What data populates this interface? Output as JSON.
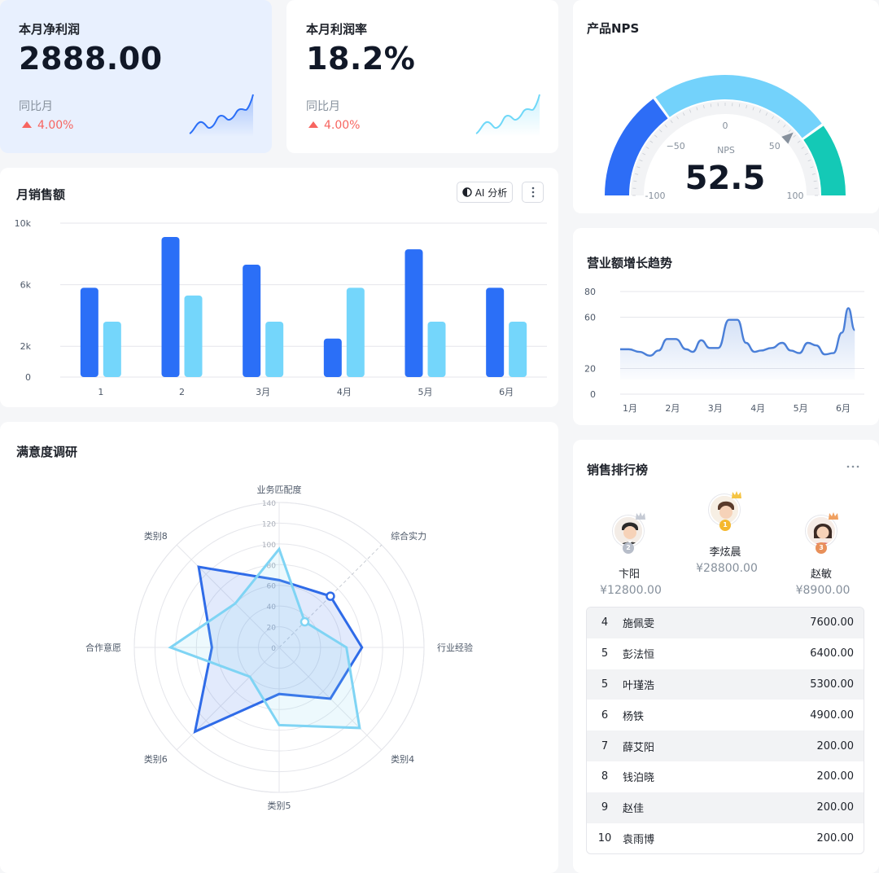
{
  "kpi_profit": {
    "title": "本月净利润",
    "value": "2888.00",
    "compare_label": "同比月",
    "change": "4.00%"
  },
  "kpi_margin": {
    "title": "本月利润率",
    "value": "18.2%",
    "compare_label": "同比月",
    "change": "4.00%"
  },
  "nps": {
    "title": "产品NPS",
    "label": "NPS",
    "value": "52.5",
    "gauge_value": 52.5,
    "range": [
      -100,
      100
    ],
    "ticks": [
      "-100",
      "−50",
      "0",
      "50",
      "100"
    ],
    "colors": [
      "#2d6df6",
      "#73d2fb",
      "#14c9b6"
    ]
  },
  "monthly_sales": {
    "title": "月销售额",
    "ai_button": "AI 分析",
    "more_icon": "more-vertical-icon",
    "chart_data": {
      "type": "bar",
      "categories": [
        "1",
        "2",
        "3月",
        "4月",
        "5月",
        "6月"
      ],
      "series": [
        {
          "values": [
            5800,
            9100,
            7300,
            2500,
            8300,
            5800
          ],
          "color": "#2b6ff7"
        },
        {
          "values": [
            3600,
            5300,
            3600,
            5800,
            3600,
            3600
          ],
          "color": "#74d6fb"
        }
      ],
      "y_ticks": [
        "0",
        "2k",
        "6k",
        "10k"
      ],
      "ylim": [
        0,
        10000
      ],
      "grid": true
    }
  },
  "revenue_trend": {
    "title": "营业额增长趋势",
    "chart_data": {
      "type": "area",
      "x_ticks": [
        "1月",
        "2月",
        "3月",
        "4月",
        "5月",
        "6月"
      ],
      "y_ticks": [
        "0",
        "20",
        "60",
        "80"
      ],
      "ylim": [
        0,
        80
      ],
      "x": [
        0.0,
        0.2,
        0.45,
        0.7,
        0.9,
        1.1,
        1.3,
        1.55,
        1.7,
        1.9,
        2.1,
        2.3,
        2.55,
        2.75,
        2.95,
        3.15,
        3.3,
        3.55,
        3.8,
        4.0,
        4.2,
        4.4,
        4.6,
        4.8,
        5.0,
        5.2,
        5.35,
        5.5,
        5.75,
        5.9,
        6.0,
        6.1,
        6.2
      ],
      "values": [
        35,
        35,
        33,
        30,
        34,
        43,
        43,
        35,
        33,
        42,
        36,
        36,
        58,
        58,
        40,
        33,
        34,
        36,
        40,
        34,
        32,
        40,
        38,
        31,
        32,
        48,
        67,
        50,
        35,
        35,
        35,
        35,
        35
      ],
      "color": "#4a7fd8",
      "grid": true
    }
  },
  "satisfaction": {
    "title": "满意度调研",
    "chart_data": {
      "type": "radar",
      "axes": [
        "业务匹配度",
        "综合实力",
        "行业经验",
        "类别4",
        "类别5",
        "类别6",
        "合作意愿",
        "类别8"
      ],
      "r_ticks": [
        "0",
        "20",
        "40",
        "60",
        "80",
        "100",
        "120",
        "140"
      ],
      "rmax": 140,
      "series": [
        {
          "values": [
            65,
            70,
            80,
            70,
            45,
            115,
            65,
            110
          ],
          "color": "#2f6be8"
        },
        {
          "values": [
            95,
            35,
            65,
            110,
            75,
            40,
            105,
            60
          ],
          "color": "#7fd4f4"
        }
      ]
    }
  },
  "sales_ranking": {
    "title": "销售排行榜",
    "more_icon": "more-horizontal-icon",
    "podium": [
      {
        "rank": "2",
        "name": "卞阳",
        "amount": "¥12800.00",
        "medal_color": "#b7bdc9"
      },
      {
        "rank": "1",
        "name": "李炫晨",
        "amount": "¥28800.00",
        "medal_color": "#f5b82e"
      },
      {
        "rank": "3",
        "name": "赵敏",
        "amount": "¥8900.00",
        "medal_color": "#e8905a"
      }
    ],
    "list": [
      {
        "rank": "4",
        "name": "施佩雯",
        "value": "7600.00"
      },
      {
        "rank": "5",
        "name": "彭法恒",
        "value": "6400.00"
      },
      {
        "rank": "5",
        "name": "叶瑾浩",
        "value": "5300.00"
      },
      {
        "rank": "6",
        "name": "杨铁",
        "value": "4900.00"
      },
      {
        "rank": "7",
        "name": "薛艾阳",
        "value": "200.00"
      },
      {
        "rank": "8",
        "name": "钱泊晓",
        "value": "200.00"
      },
      {
        "rank": "9",
        "name": "赵佳",
        "value": "200.00"
      },
      {
        "rank": "10",
        "name": "袁雨博",
        "value": "200.00"
      }
    ]
  }
}
